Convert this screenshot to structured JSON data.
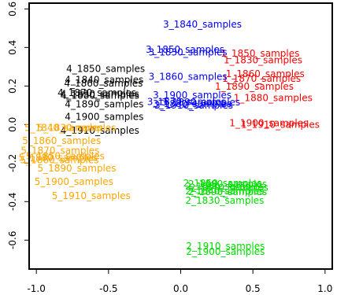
{
  "chart_data": {
    "type": "scatter",
    "title": "",
    "xlabel": "",
    "ylabel": "",
    "xlim": [
      -1.05,
      1.05
    ],
    "ylim": [
      -0.75,
      0.63
    ],
    "x_ticks": [
      -1.0,
      -0.5,
      0.0,
      0.5,
      1.0
    ],
    "x_tick_labels": [
      "-1.0",
      "-0.5",
      "0.0",
      "0.5",
      "1.0"
    ],
    "y_ticks": [
      -0.6,
      -0.4,
      -0.2,
      0.0,
      0.2,
      0.4,
      0.6
    ],
    "y_tick_labels": [
      "-0.6",
      "-0.4",
      "-0.2",
      "0.0",
      "0.2",
      "0.4",
      "0.6"
    ],
    "grid": false,
    "legend": "none",
    "series": [
      {
        "color": "#ff0000",
        "points": [
          {
            "label": "1_1830_samples",
            "x": 0.57,
            "y": 0.335
          },
          {
            "label": "1_1850_samples",
            "x": 0.55,
            "y": 0.368
          },
          {
            "label": "1_1860_samples",
            "x": 0.585,
            "y": 0.262
          },
          {
            "label": "1_1870_samples",
            "x": 0.56,
            "y": 0.238
          },
          {
            "label": "1_1890_samples",
            "x": 0.51,
            "y": 0.198
          },
          {
            "label": "1_1880_samples",
            "x": 0.64,
            "y": 0.138
          },
          {
            "label": "1_1900_samples",
            "x": 0.61,
            "y": 0.008
          },
          {
            "label": "1_1910_samples",
            "x": 0.69,
            "y": 0.0
          }
        ]
      },
      {
        "color": "#00dd00",
        "points": [
          {
            "label": "2_1850_samples",
            "x": 0.29,
            "y": -0.305
          },
          {
            "label": "2_1880_samples",
            "x": 0.325,
            "y": -0.31
          },
          {
            "label": "2_1860_samples",
            "x": 0.305,
            "y": -0.322
          },
          {
            "label": "2_1870_samples",
            "x": 0.335,
            "y": -0.327
          },
          {
            "label": "2_1840_samples",
            "x": 0.305,
            "y": -0.346
          },
          {
            "label": "2_1890_samples",
            "x": 0.325,
            "y": -0.35
          },
          {
            "label": "2_1830_samples",
            "x": 0.305,
            "y": -0.395
          },
          {
            "label": "2_1910_samples",
            "x": 0.31,
            "y": -0.632
          },
          {
            "label": "2_1900_samples",
            "x": 0.31,
            "y": -0.66
          }
        ]
      },
      {
        "color": "#0000ff",
        "points": [
          {
            "label": "3_1840_samples",
            "x": 0.15,
            "y": 0.52
          },
          {
            "label": "3_1850_samples",
            "x": 0.03,
            "y": 0.39
          },
          {
            "label": "3_1830_samples",
            "x": 0.05,
            "y": 0.375
          },
          {
            "label": "3_1860_samples",
            "x": 0.05,
            "y": 0.248
          },
          {
            "label": "3_1900_samples",
            "x": 0.08,
            "y": 0.152
          },
          {
            "label": "3_1870_samples",
            "x": 0.04,
            "y": 0.118
          },
          {
            "label": "3_1880_samples",
            "x": 0.08,
            "y": 0.108
          },
          {
            "label": "3_1890_samples",
            "x": 0.14,
            "y": 0.116
          },
          {
            "label": "3_1910_samples",
            "x": 0.09,
            "y": 0.1
          }
        ]
      },
      {
        "color": "#000000",
        "points": [
          {
            "label": "4_1850_samples",
            "x": -0.52,
            "y": 0.29
          },
          {
            "label": "4_1840_samples",
            "x": -0.53,
            "y": 0.232
          },
          {
            "label": "4_1860_samples",
            "x": -0.535,
            "y": 0.214
          },
          {
            "label": "4_1830_samples",
            "x": -0.56,
            "y": 0.158
          },
          {
            "label": "4_1870_samples",
            "x": -0.58,
            "y": 0.164
          },
          {
            "label": "4_1880_samples",
            "x": -0.56,
            "y": 0.15
          },
          {
            "label": "4_1890_samples",
            "x": -0.53,
            "y": 0.106
          },
          {
            "label": "4_1900_samples",
            "x": -0.53,
            "y": 0.04
          },
          {
            "label": "4_1910_samples",
            "x": -0.56,
            "y": -0.032
          }
        ]
      },
      {
        "color": "#ffa500",
        "points": [
          {
            "label": "5_1840_samples",
            "x": -0.81,
            "y": -0.018
          },
          {
            "label": "5_1830_samples",
            "x": -0.72,
            "y": -0.018
          },
          {
            "label": "5_1860_samples",
            "x": -0.825,
            "y": -0.085
          },
          {
            "label": "5_1870_samples",
            "x": -0.835,
            "y": -0.135
          },
          {
            "label": "5_1850_samples",
            "x": -0.8,
            "y": -0.165
          },
          {
            "label": "5_1880_samples",
            "x": -0.85,
            "y": -0.172
          },
          {
            "label": "5_1860_samples",
            "x": -0.84,
            "y": -0.185
          },
          {
            "label": "5_1890_samples",
            "x": -0.72,
            "y": -0.228
          },
          {
            "label": "5_1900_samples",
            "x": -0.74,
            "y": -0.296
          },
          {
            "label": "5_1910_samples",
            "x": -0.62,
            "y": -0.37
          }
        ]
      }
    ]
  }
}
